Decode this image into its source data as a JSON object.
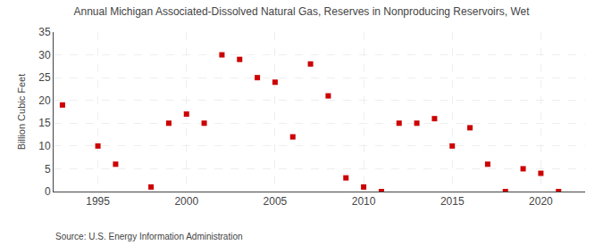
{
  "chart_data": {
    "type": "scatter",
    "title": "Annual Michigan Associated-Dissolved Natural Gas, Reserves in Nonproducing Reservoirs, Wet",
    "ylabel": "Billion Cubic Feet",
    "annotations": [
      "Source: U.S. Energy Information Administration"
    ],
    "x": [
      1993,
      1995,
      1996,
      1998,
      1999,
      2000,
      2001,
      2002,
      2003,
      2004,
      2005,
      2006,
      2007,
      2008,
      2009,
      2010,
      2011,
      2012,
      2013,
      2014,
      2015,
      2016,
      2017,
      2018,
      2019,
      2020,
      2021
    ],
    "values": [
      19,
      10,
      6,
      1,
      15,
      17,
      15,
      30,
      29,
      25,
      24,
      12,
      28,
      21,
      3,
      1,
      0,
      15,
      15,
      16,
      10,
      14,
      6,
      0,
      5,
      4,
      0
    ],
    "color": "#cc0000",
    "marker": "square",
    "xlim": [
      1992.5,
      2022.5
    ],
    "ylim": [
      0,
      35
    ],
    "xticks": [
      1995,
      2000,
      2005,
      2010,
      2015,
      2020
    ],
    "yticks": [
      0,
      5,
      10,
      15,
      20,
      25,
      30,
      35
    ],
    "grid": true
  }
}
